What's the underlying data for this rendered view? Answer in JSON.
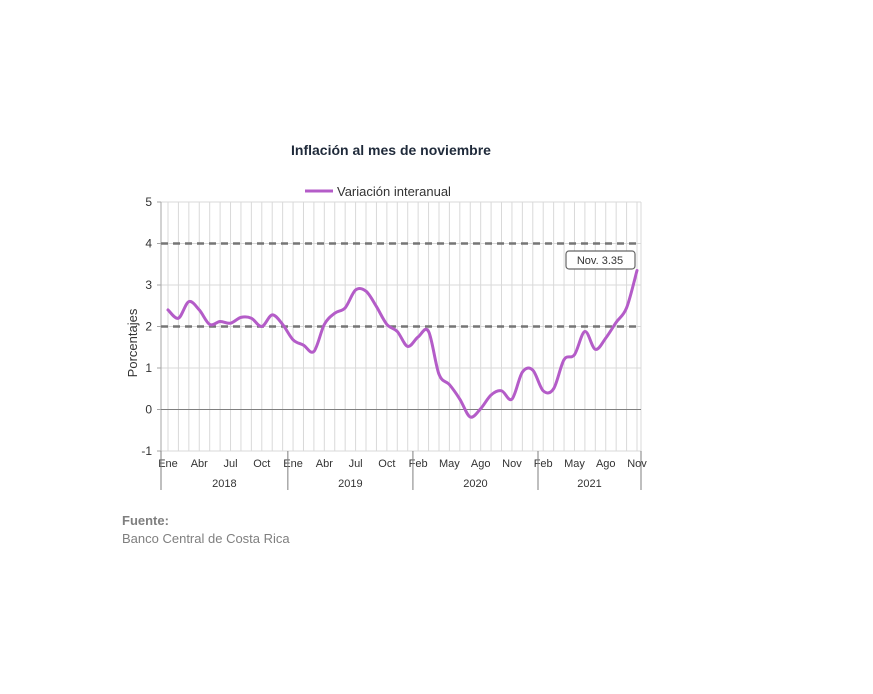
{
  "chart_data": {
    "type": "line",
    "title": "Inflación al mes de noviembre",
    "ylabel": "Porcentajes",
    "xlabel": "",
    "ylim": [
      -1,
      5
    ],
    "yticks": [
      "5",
      "4",
      "3",
      "2",
      "1",
      "0",
      "-1"
    ],
    "grid": true,
    "legend": "top-center",
    "reference_lines": [
      2,
      4
    ],
    "xtick_labels": [
      "Ene",
      "Abr",
      "Jul",
      "Oct",
      "Ene",
      "Abr",
      "Jul",
      "Oct",
      "Feb",
      "May",
      "Ago",
      "Nov",
      "Feb",
      "May",
      "Ago",
      "Nov"
    ],
    "years": [
      "2018",
      "2019",
      "2020",
      "2021"
    ],
    "series": [
      {
        "name": "Variación interanual",
        "color": "#b45cc8",
        "values": [
          2.4,
          2.2,
          2.6,
          2.4,
          2.05,
          2.12,
          2.08,
          2.22,
          2.2,
          2.0,
          2.28,
          2.05,
          1.68,
          1.55,
          1.4,
          2.05,
          2.32,
          2.45,
          2.88,
          2.85,
          2.48,
          2.05,
          1.88,
          1.52,
          1.75,
          1.88,
          0.85,
          0.6,
          0.25,
          -0.18,
          0.02,
          0.35,
          0.45,
          0.25,
          0.9,
          0.95,
          0.45,
          0.5,
          1.2,
          1.32,
          1.88,
          1.45,
          1.72,
          2.1,
          2.45,
          3.35
        ]
      }
    ],
    "annotation": "Nov. 3.35"
  },
  "source": {
    "label": "Fuente:",
    "text": "Banco Central de Costa Rica"
  }
}
